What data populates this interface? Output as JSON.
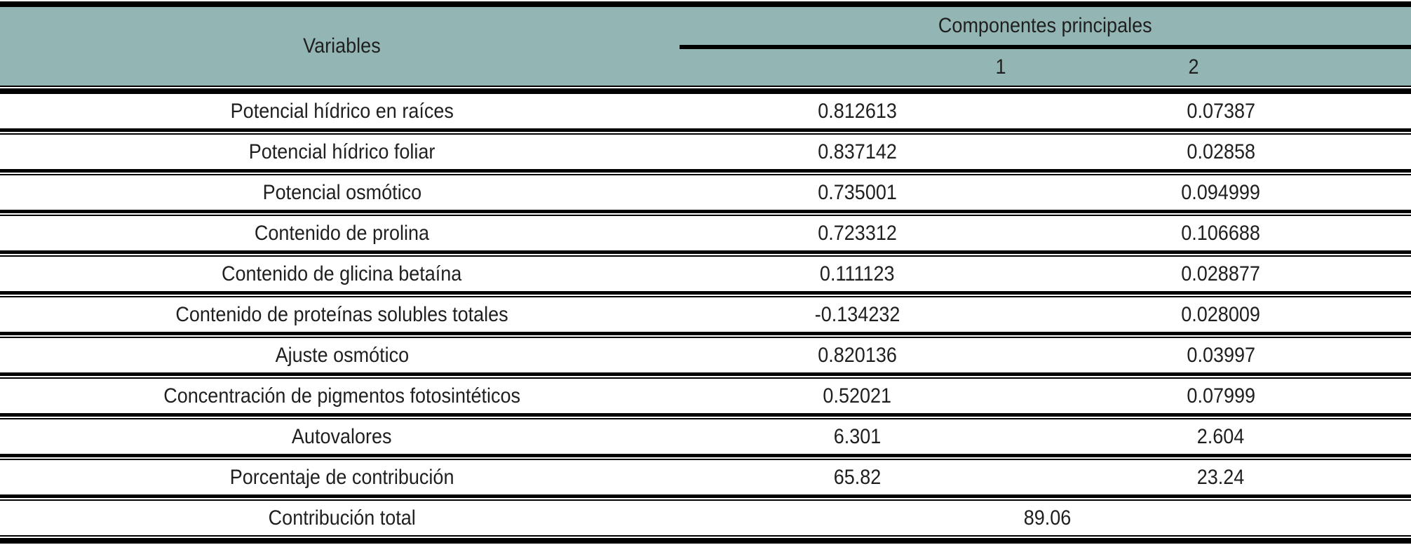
{
  "chart_data": {
    "type": "table",
    "header": {
      "variables": "Variables",
      "group": "Componentes principales",
      "subcols": [
        "1",
        "2"
      ]
    },
    "rows": [
      {
        "label": "Potencial hídrico en raíces",
        "pc1": "0.812613",
        "pc2": "0.07387"
      },
      {
        "label": "Potencial hídrico foliar",
        "pc1": "0.837142",
        "pc2": "0.02858"
      },
      {
        "label": "Potencial osmótico",
        "pc1": "0.735001",
        "pc2": "0.094999"
      },
      {
        "label": "Contenido de prolina",
        "pc1": "0.723312",
        "pc2": "0.106688"
      },
      {
        "label": "Contenido de glicina betaína",
        "pc1": "0.111123",
        "pc2": "0.028877"
      },
      {
        "label": "Contenido de proteínas solubles totales",
        "pc1": "-0.134232",
        "pc2": "0.028009"
      },
      {
        "label": "Ajuste osmótico",
        "pc1": "0.820136",
        "pc2": "0.03997"
      },
      {
        "label": "Concentración de pigmentos fotosintéticos",
        "pc1": "0.52021",
        "pc2": "0.07999"
      },
      {
        "label": "Autovalores",
        "pc1": "6.301",
        "pc2": "2.604"
      },
      {
        "label": "Porcentaje de contribución",
        "pc1": "65.82",
        "pc2": "23.24"
      }
    ],
    "total_row": {
      "label": "Contribución total",
      "value": "89.06"
    },
    "layout": {
      "legend": "none",
      "grid": "horizontal-rules-only"
    },
    "colors": {
      "header_bg": "#93b6b4",
      "rule": "#000000",
      "text": "#1f1f1f"
    }
  }
}
